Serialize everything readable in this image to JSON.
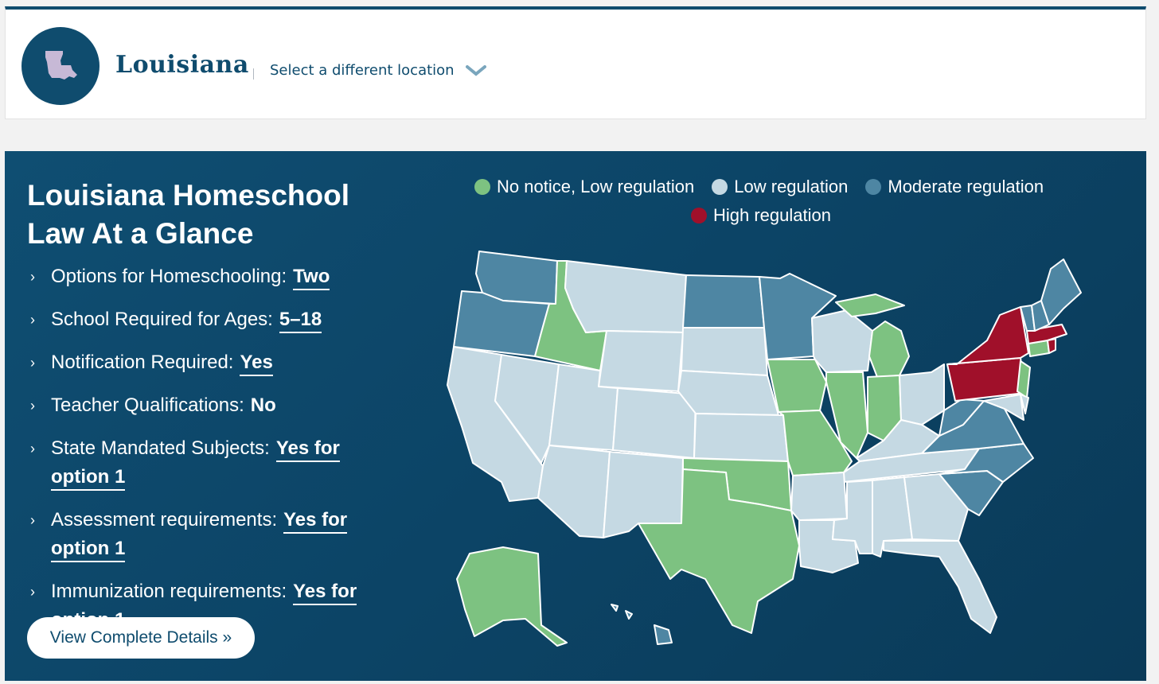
{
  "header": {
    "location_name": "Louisiana",
    "select_label": "Select a different location",
    "badge_icon": "louisiana-state-shape-icon"
  },
  "glance": {
    "title": "Louisiana Homeschool Law At a Glance",
    "facts": [
      {
        "label": "Options for Homeschooling:",
        "value": "Two"
      },
      {
        "label": "School Required for Ages:",
        "value": "5–18"
      },
      {
        "label": "Notification Required:",
        "value": "Yes"
      },
      {
        "label": "Teacher Qualifications:",
        "value": "No"
      },
      {
        "label": "State Mandated Subjects:",
        "value": "Yes for option 1"
      },
      {
        "label": "Assessment requirements:",
        "value": "Yes for option 1"
      },
      {
        "label": "Immunization requirements:",
        "value": "Yes for option 1"
      }
    ],
    "button_label": "View Complete Details »"
  },
  "legend": [
    {
      "label": "No notice, Low regulation",
      "color": "#7dc281"
    },
    {
      "label": "Low regulation",
      "color": "#c5d9e3"
    },
    {
      "label": "Moderate regulation",
      "color": "#4e86a3"
    },
    {
      "label": "High regulation",
      "color": "#a0102a"
    }
  ],
  "colors": {
    "primary": "#0f4c6e",
    "no_notice": "#7dc281",
    "low": "#c5d9e3",
    "moderate": "#4e86a3",
    "high": "#a0102a"
  }
}
